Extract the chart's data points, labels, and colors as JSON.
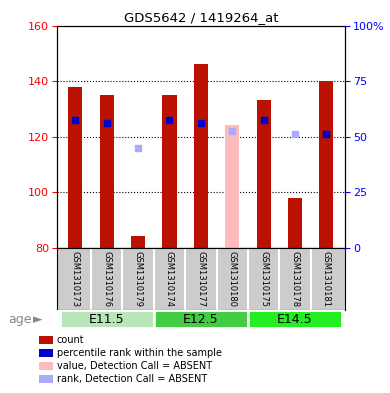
{
  "title": "GDS5642 / 1419264_at",
  "samples": [
    "GSM1310173",
    "GSM1310176",
    "GSM1310179",
    "GSM1310174",
    "GSM1310177",
    "GSM1310180",
    "GSM1310175",
    "GSM1310178",
    "GSM1310181"
  ],
  "count_values": [
    138,
    135,
    84,
    135,
    146,
    null,
    133,
    98,
    140
  ],
  "count_absent": [
    null,
    null,
    null,
    null,
    null,
    124,
    null,
    null,
    null
  ],
  "rank_values": [
    126,
    125,
    null,
    126,
    125,
    null,
    126,
    null,
    121
  ],
  "rank_absent": [
    null,
    null,
    116,
    null,
    null,
    122,
    null,
    121,
    null
  ],
  "ylim": [
    80,
    160
  ],
  "yticks": [
    80,
    100,
    120,
    140,
    160
  ],
  "age_groups": [
    {
      "label": "E11.5",
      "start": 0,
      "end": 3,
      "color": "#aaddaa"
    },
    {
      "label": "E12.5",
      "start": 3,
      "end": 6,
      "color": "#55cc55"
    },
    {
      "label": "E14.5",
      "start": 6,
      "end": 9,
      "color": "#44ee44"
    }
  ],
  "bar_width": 0.45,
  "count_color": "#bb1100",
  "count_absent_color": "#ffbbbb",
  "rank_color": "#0000cc",
  "rank_absent_color": "#aaaaff",
  "legend_items": [
    {
      "color": "#bb1100",
      "label": "count"
    },
    {
      "color": "#0000cc",
      "label": "percentile rank within the sample"
    },
    {
      "color": "#ffbbbb",
      "label": "value, Detection Call = ABSENT"
    },
    {
      "color": "#aaaaff",
      "label": "rank, Detection Call = ABSENT"
    }
  ]
}
